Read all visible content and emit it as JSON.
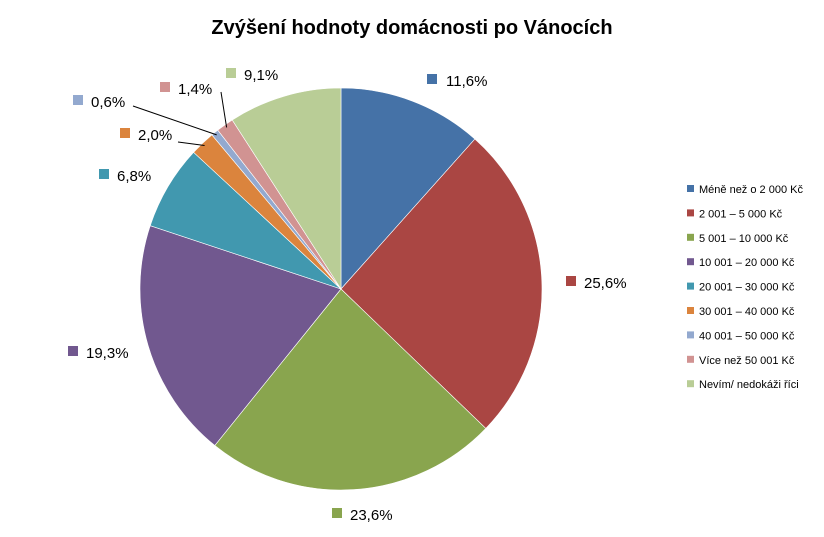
{
  "chart_data": {
    "type": "pie",
    "title": "Zvýšení hodnoty domácnosti po Vánocích",
    "categories": [
      "Méně než o 2 000 Kč",
      "2 001 – 5 000 Kč",
      "5 001 – 10 000 Kč",
      "10 001 – 20 000 Kč",
      "20 001 – 30 000 Kč",
      "30 001 – 40 000 Kč",
      "40 001 – 50 000 Kč",
      "Více než 50 001 Kč",
      "Nevím/ nedokáži říci"
    ],
    "values": [
      11.6,
      25.6,
      23.6,
      19.3,
      6.8,
      2.0,
      0.6,
      1.4,
      9.1
    ],
    "value_labels": [
      "11,6%",
      "25,6%",
      "23,6%",
      "19,3%",
      "6,8%",
      "2,0%",
      "0,6%",
      "1,4%",
      "9,1%"
    ],
    "colors": [
      "#4572A7",
      "#AA4643",
      "#89A54E",
      "#71588F",
      "#4198AF",
      "#DB843D",
      "#93A9CF",
      "#D19392",
      "#B9CD96"
    ],
    "start_angle": "12 o'clock",
    "direction": "clockwise",
    "legend_position": "right"
  }
}
